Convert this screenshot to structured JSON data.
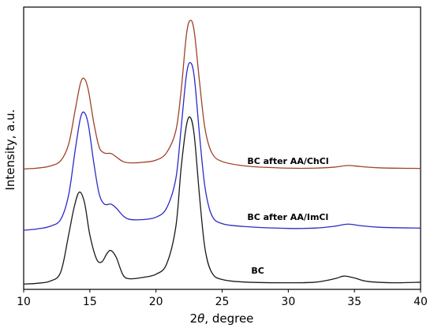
{
  "chart_data": {
    "type": "line",
    "title": "",
    "xlabel_prefix": "2",
    "xlabel_symbol": "θ",
    "xlabel_suffix": ", degree",
    "ylabel": "Intensity, a.u.",
    "xlim": [
      10,
      40
    ],
    "ylim": [
      0,
      1
    ],
    "xticks": [
      10,
      15,
      20,
      25,
      30,
      35,
      40
    ],
    "yticks_shown": false,
    "grid": false,
    "legend": "none",
    "series": [
      {
        "name": "BC after AA/ChCl",
        "color": "#a0412a",
        "label_at": [
          26.9,
          0.455
        ],
        "points": [
          [
            10,
            0.437
          ],
          [
            11,
            0.44
          ],
          [
            12,
            0.448
          ],
          [
            12.8,
            0.468
          ],
          [
            13.4,
            0.53
          ],
          [
            13.9,
            0.66
          ],
          [
            14.3,
            0.76
          ],
          [
            14.6,
            0.775
          ],
          [
            14.9,
            0.73
          ],
          [
            15.3,
            0.61
          ],
          [
            15.7,
            0.52
          ],
          [
            16.1,
            0.497
          ],
          [
            16.6,
            0.495
          ],
          [
            17.0,
            0.482
          ],
          [
            17.5,
            0.465
          ],
          [
            18.0,
            0.46
          ],
          [
            19.0,
            0.462
          ],
          [
            20.0,
            0.47
          ],
          [
            20.8,
            0.498
          ],
          [
            21.5,
            0.58
          ],
          [
            21.9,
            0.73
          ],
          [
            22.3,
            0.94
          ],
          [
            22.6,
            0.995
          ],
          [
            22.9,
            0.95
          ],
          [
            23.3,
            0.76
          ],
          [
            23.7,
            0.59
          ],
          [
            24.2,
            0.5
          ],
          [
            25,
            0.465
          ],
          [
            27,
            0.447
          ],
          [
            30,
            0.44
          ],
          [
            32,
            0.44
          ],
          [
            33.5,
            0.444
          ],
          [
            34.5,
            0.45
          ],
          [
            35.5,
            0.446
          ],
          [
            37,
            0.441
          ],
          [
            40,
            0.439
          ]
        ]
      },
      {
        "name": "BC after AA/ImCl",
        "color": "#2b2bc8",
        "label_at": [
          26.9,
          0.245
        ],
        "points": [
          [
            10,
            0.207
          ],
          [
            11,
            0.212
          ],
          [
            12,
            0.222
          ],
          [
            12.8,
            0.248
          ],
          [
            13.4,
            0.34
          ],
          [
            13.9,
            0.51
          ],
          [
            14.3,
            0.63
          ],
          [
            14.6,
            0.648
          ],
          [
            14.9,
            0.6
          ],
          [
            15.3,
            0.46
          ],
          [
            15.7,
            0.345
          ],
          [
            16.1,
            0.305
          ],
          [
            16.6,
            0.305
          ],
          [
            17.0,
            0.29
          ],
          [
            17.5,
            0.262
          ],
          [
            18.0,
            0.248
          ],
          [
            19.0,
            0.247
          ],
          [
            20.0,
            0.256
          ],
          [
            20.8,
            0.29
          ],
          [
            21.5,
            0.4
          ],
          [
            21.9,
            0.59
          ],
          [
            22.3,
            0.79
          ],
          [
            22.6,
            0.836
          ],
          [
            22.9,
            0.78
          ],
          [
            23.3,
            0.56
          ],
          [
            23.7,
            0.37
          ],
          [
            24.2,
            0.265
          ],
          [
            25,
            0.232
          ],
          [
            27,
            0.22
          ],
          [
            30,
            0.214
          ],
          [
            32,
            0.215
          ],
          [
            33.5,
            0.222
          ],
          [
            34.5,
            0.23
          ],
          [
            35.5,
            0.224
          ],
          [
            37,
            0.218
          ],
          [
            40,
            0.215
          ]
        ]
      },
      {
        "name": "BC",
        "color": "#1a1a1a",
        "label_at": [
          27.2,
          0.045
        ],
        "points": [
          [
            10,
            0.005
          ],
          [
            11,
            0.008
          ],
          [
            12,
            0.016
          ],
          [
            12.8,
            0.05
          ],
          [
            13.4,
            0.19
          ],
          [
            13.8,
            0.29
          ],
          [
            14.2,
            0.35
          ],
          [
            14.6,
            0.31
          ],
          [
            15.0,
            0.19
          ],
          [
            15.5,
            0.1
          ],
          [
            15.9,
            0.088
          ],
          [
            16.3,
            0.12
          ],
          [
            16.6,
            0.131
          ],
          [
            17.0,
            0.105
          ],
          [
            17.5,
            0.04
          ],
          [
            18.0,
            0.025
          ],
          [
            19.0,
            0.03
          ],
          [
            20.0,
            0.042
          ],
          [
            20.8,
            0.08
          ],
          [
            21.5,
            0.22
          ],
          [
            21.9,
            0.44
          ],
          [
            22.3,
            0.6
          ],
          [
            22.6,
            0.63
          ],
          [
            22.9,
            0.56
          ],
          [
            23.3,
            0.33
          ],
          [
            23.7,
            0.14
          ],
          [
            24.2,
            0.05
          ],
          [
            25,
            0.022
          ],
          [
            27,
            0.012
          ],
          [
            30,
            0.01
          ],
          [
            32,
            0.012
          ],
          [
            33.5,
            0.025
          ],
          [
            34.2,
            0.035
          ],
          [
            35.0,
            0.028
          ],
          [
            36,
            0.015
          ],
          [
            38,
            0.01
          ],
          [
            40,
            0.012
          ]
        ]
      }
    ]
  }
}
